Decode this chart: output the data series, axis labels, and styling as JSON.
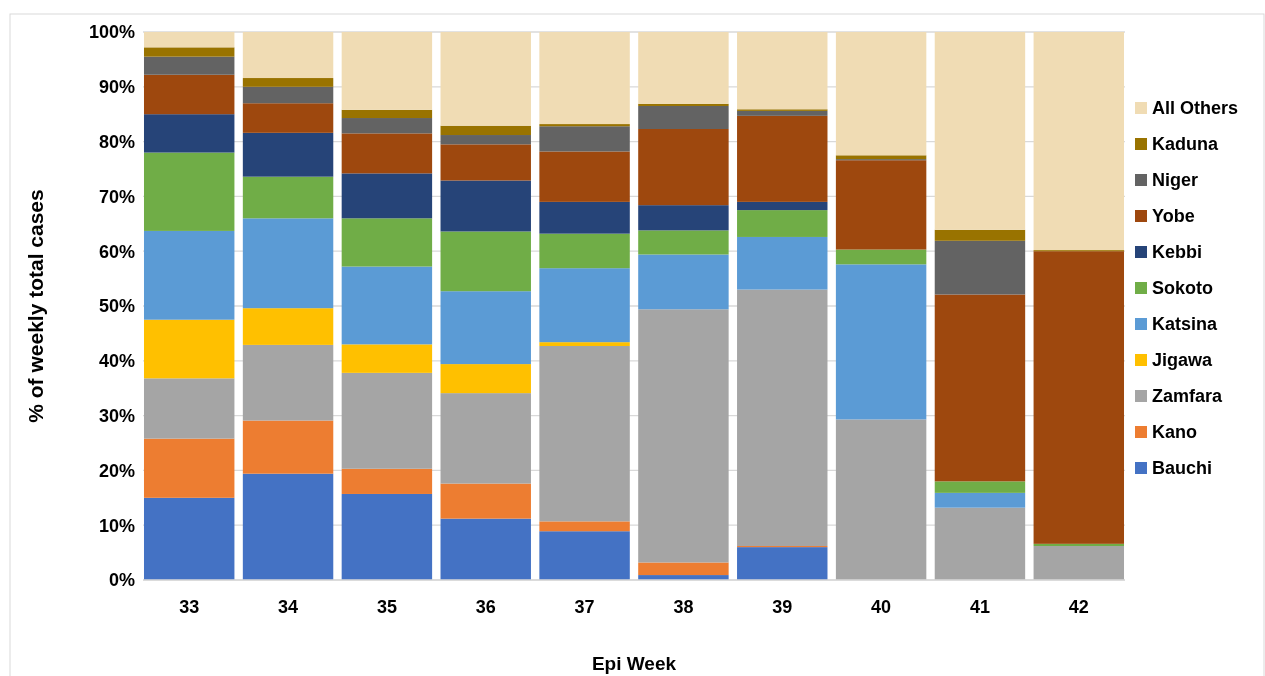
{
  "chart_data": {
    "type": "bar",
    "stacked": true,
    "xlabel": "Epi Week",
    "ylabel": "% of weekly total cases",
    "categories": [
      "33",
      "34",
      "35",
      "36",
      "37",
      "38",
      "39",
      "40",
      "41",
      "42"
    ],
    "series": [
      {
        "name": "Bauchi",
        "color": "#4472c4",
        "values": [
          15,
          19.4,
          15.7,
          11.2,
          8.9,
          0.9,
          6,
          0,
          0,
          0
        ]
      },
      {
        "name": "Kano",
        "color": "#ed7d31",
        "values": [
          10.8,
          9.7,
          4.6,
          6.4,
          1.8,
          2.3,
          0.2,
          0,
          0,
          0
        ]
      },
      {
        "name": "Zamfara",
        "color": "#a5a5a5",
        "values": [
          11,
          13.8,
          17.5,
          16.5,
          32,
          46.2,
          46.8,
          29.3,
          13.2,
          6.2
        ]
      },
      {
        "name": "Jigawa",
        "color": "#ffc000",
        "values": [
          10.7,
          6.7,
          5.2,
          5.3,
          0.7,
          0,
          0,
          0,
          0,
          0
        ]
      },
      {
        "name": "Katsina",
        "color": "#5b9bd5",
        "values": [
          16.2,
          16.4,
          14.2,
          13.3,
          13.5,
          10,
          9.6,
          28.3,
          2.7,
          0
        ]
      },
      {
        "name": "Sokoto",
        "color": "#70ad47",
        "values": [
          14.3,
          7.6,
          8.8,
          10.9,
          6.3,
          4.4,
          4.9,
          2.7,
          2.1,
          0.4
        ]
      },
      {
        "name": "Kebbi",
        "color": "#264478",
        "values": [
          7,
          8,
          8.2,
          9.3,
          5.8,
          4.6,
          1.5,
          0,
          0,
          0
        ]
      },
      {
        "name": "Yobe",
        "color": "#9e480e",
        "values": [
          7.2,
          5.4,
          7.3,
          6.6,
          9.2,
          13.9,
          15.7,
          16.3,
          34.1,
          53.4
        ]
      },
      {
        "name": "Niger",
        "color": "#636363",
        "values": [
          3.3,
          3,
          2.8,
          1.7,
          4.6,
          4.2,
          0.9,
          0.2,
          9.8,
          0
        ]
      },
      {
        "name": "Kaduna",
        "color": "#997300",
        "values": [
          1.7,
          1.6,
          1.5,
          1.7,
          0.4,
          0.4,
          0.3,
          0.7,
          2,
          0.2
        ]
      },
      {
        "name": "All Others",
        "color": "#f0dcb4",
        "values": [
          2.8,
          8.4,
          14.2,
          17.1,
          16.8,
          13.1,
          14.1,
          22.5,
          36.1,
          39.8
        ]
      }
    ],
    "ylim": [
      0,
      100
    ],
    "yticks": [
      {
        "value": 0,
        "label": "0%"
      },
      {
        "value": 10,
        "label": "10%"
      },
      {
        "value": 20,
        "label": "20%"
      },
      {
        "value": 30,
        "label": "30%"
      },
      {
        "value": 40,
        "label": "40%"
      },
      {
        "value": 50,
        "label": "50%"
      },
      {
        "value": 60,
        "label": "60%"
      },
      {
        "value": 70,
        "label": "70%"
      },
      {
        "value": 80,
        "label": "80%"
      },
      {
        "value": 90,
        "label": "90%"
      },
      {
        "value": 100,
        "label": "100%"
      }
    ],
    "grid": "y",
    "legend": "right"
  }
}
